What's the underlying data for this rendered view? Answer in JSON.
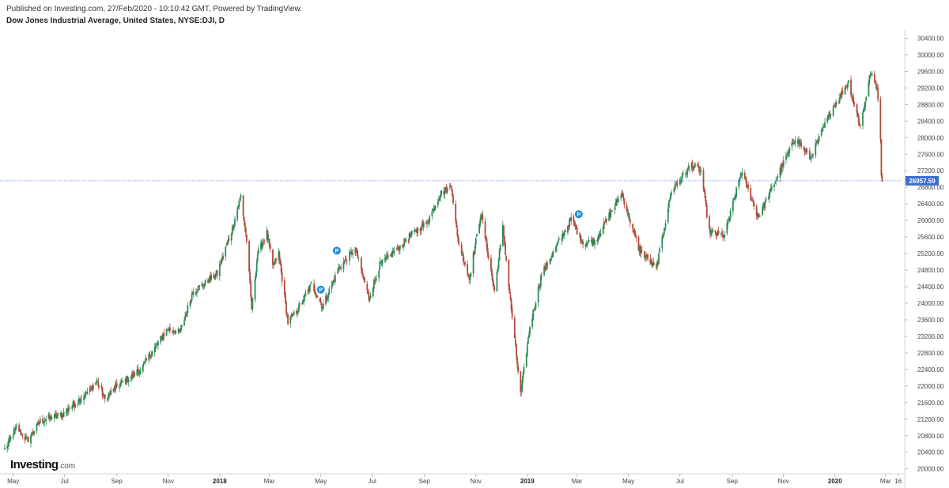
{
  "header": {
    "published": "Published on Investing.com, 27/Feb/2020 - 10:10:42 GMT, Powered by TradingView.",
    "title": "Dow Jones Industrial Average, United States, NYSE:DJI, D"
  },
  "branding": {
    "name": "Investing",
    "suffix": ".com"
  },
  "chart_data": {
    "type": "candlestick",
    "instrument": "Dow Jones Industrial Average, United States, NYSE:DJI, D",
    "x_axis": {
      "labels": [
        "May",
        "Jul",
        "Sep",
        "Nov",
        "2018",
        "Mar",
        "May",
        "Jul",
        "Sep",
        "Nov",
        "2019",
        "Mar",
        "May",
        "Jul",
        "Sep",
        "Nov",
        "2020",
        "Mar",
        "16"
      ],
      "bold_labels": [
        "2018",
        "2019",
        "2020"
      ],
      "range": [
        "2017-04-21",
        "2020-03-20"
      ]
    },
    "y_axis": {
      "ylim": [
        19880,
        30600
      ],
      "ticks": [
        "20000.00",
        "20400.00",
        "20800.00",
        "21200.00",
        "21600.00",
        "22000.00",
        "22400.00",
        "22800.00",
        "23200.00",
        "23600.00",
        "24000.00",
        "24400.00",
        "24800.00",
        "25200.00",
        "25600.00",
        "26000.00",
        "26400.00",
        "26800.00",
        "27200.00",
        "27600.00",
        "28000.00",
        "28400.00",
        "28800.00",
        "29200.00",
        "29600.00",
        "30000.00",
        "30400.00"
      ],
      "side": "right"
    },
    "last_price": {
      "value": 26957.59,
      "label": "26957.59",
      "color": "#3d6fd1"
    },
    "colors": {
      "up": "#2e8b57",
      "down": "#b04a3a"
    },
    "grid": false,
    "markers": [
      {
        "label": "P",
        "date": "2018-05-01",
        "price": 24330
      },
      {
        "label": "P",
        "date": "2018-05-20",
        "price": 25270
      },
      {
        "label": "P",
        "date": "2019-03-03",
        "price": 26150
      }
    ],
    "close_path": [
      [
        "2017-04-21",
        20480
      ],
      [
        "2017-05-05",
        21000
      ],
      [
        "2017-05-18",
        20680
      ],
      [
        "2017-06-02",
        21150
      ],
      [
        "2017-06-30",
        21340
      ],
      [
        "2017-07-31",
        21900
      ],
      [
        "2017-08-08",
        22120
      ],
      [
        "2017-08-18",
        21680
      ],
      [
        "2017-09-01",
        21990
      ],
      [
        "2017-09-29",
        22400
      ],
      [
        "2017-10-31",
        23380
      ],
      [
        "2017-11-15",
        23290
      ],
      [
        "2017-11-30",
        24270
      ],
      [
        "2017-12-29",
        24720
      ],
      [
        "2018-01-16",
        25800
      ],
      [
        "2018-01-26",
        26600
      ],
      [
        "2018-02-02",
        25520
      ],
      [
        "2018-02-08",
        23860
      ],
      [
        "2018-02-15",
        25200
      ],
      [
        "2018-02-26",
        25700
      ],
      [
        "2018-03-05",
        24880
      ],
      [
        "2018-03-12",
        25200
      ],
      [
        "2018-03-23",
        23530
      ],
      [
        "2018-04-06",
        23930
      ],
      [
        "2018-04-20",
        24460
      ],
      [
        "2018-05-03",
        23920
      ],
      [
        "2018-05-22",
        24830
      ],
      [
        "2018-06-11",
        25320
      ],
      [
        "2018-06-27",
        24120
      ],
      [
        "2018-07-10",
        24920
      ],
      [
        "2018-08-01",
        25330
      ],
      [
        "2018-08-17",
        25670
      ],
      [
        "2018-09-04",
        25950
      ],
      [
        "2018-09-20",
        26650
      ],
      [
        "2018-10-03",
        26820
      ],
      [
        "2018-10-10",
        25600
      ],
      [
        "2018-10-24",
        24590
      ],
      [
        "2018-11-07",
        26190
      ],
      [
        "2018-11-23",
        24280
      ],
      [
        "2018-12-03",
        25830
      ],
      [
        "2018-12-10",
        24420
      ],
      [
        "2018-12-24",
        21790
      ],
      [
        "2019-01-04",
        23430
      ],
      [
        "2019-01-18",
        24700
      ],
      [
        "2019-02-22",
        26030
      ],
      [
        "2019-03-08",
        25450
      ],
      [
        "2019-03-22",
        25500
      ],
      [
        "2019-04-23",
        26650
      ],
      [
        "2019-05-13",
        25330
      ],
      [
        "2019-06-03",
        24820
      ],
      [
        "2019-06-21",
        26720
      ],
      [
        "2019-07-15",
        27350
      ],
      [
        "2019-07-26",
        27190
      ],
      [
        "2019-08-05",
        25720
      ],
      [
        "2019-08-23",
        25630
      ],
      [
        "2019-09-12",
        27180
      ],
      [
        "2019-10-02",
        26080
      ],
      [
        "2019-10-18",
        26770
      ],
      [
        "2019-11-15",
        28000
      ],
      [
        "2019-12-03",
        27500
      ],
      [
        "2019-12-27",
        28640
      ],
      [
        "2020-01-17",
        29350
      ],
      [
        "2020-01-31",
        28260
      ],
      [
        "2020-02-12",
        29550
      ],
      [
        "2020-02-20",
        29220
      ],
      [
        "2020-02-21",
        28990
      ],
      [
        "2020-02-24",
        27960
      ],
      [
        "2020-02-25",
        27080
      ],
      [
        "2020-02-26",
        26960
      ]
    ]
  }
}
